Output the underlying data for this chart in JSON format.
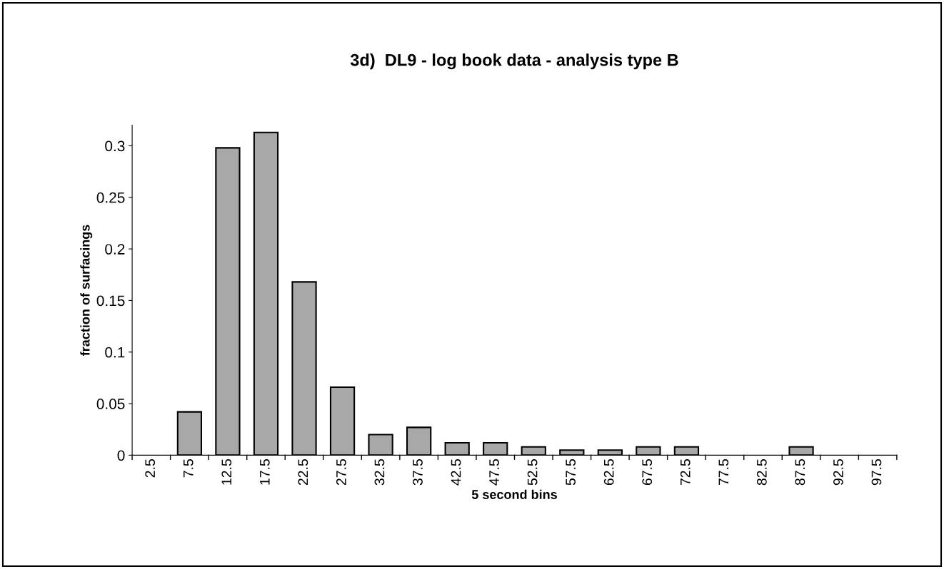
{
  "chart_data": {
    "type": "bar",
    "title": "3d)  DL9 - log book data - analysis type B",
    "xlabel": "5 second bins",
    "ylabel": "fraction of surfacings",
    "categories": [
      "2.5",
      "7.5",
      "12.5",
      "17.5",
      "22.5",
      "27.5",
      "32.5",
      "37.5",
      "42.5",
      "47.5",
      "52.5",
      "57.5",
      "62.5",
      "67.5",
      "72.5",
      "77.5",
      "82.5",
      "87.5",
      "92.5",
      "97.5"
    ],
    "values": [
      0,
      0.042,
      0.298,
      0.313,
      0.168,
      0.066,
      0.02,
      0.027,
      0.012,
      0.012,
      0.008,
      0.005,
      0.005,
      0.008,
      0.008,
      0,
      0,
      0.008,
      0,
      0
    ],
    "color": "#a8a8a8",
    "ylim": [
      0,
      0.32
    ],
    "yticks": [
      0,
      0.05,
      0.1,
      0.15,
      0.2,
      0.25,
      0.3
    ],
    "grid": false,
    "legend": false
  }
}
